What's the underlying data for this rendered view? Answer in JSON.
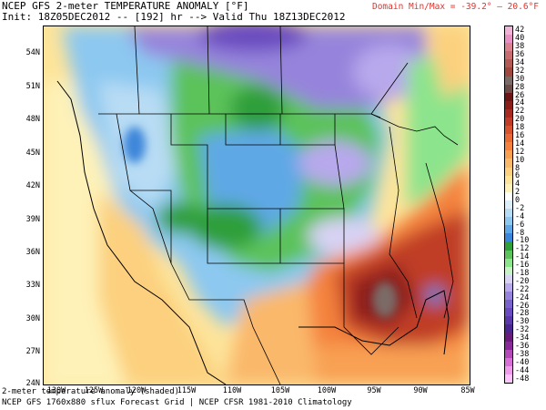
{
  "header": {
    "title": "NCEP GFS 2-meter TEMPERATURE ANOMALY [°F]",
    "init_line": "Init: 18Z05DEC2012 -- [192] hr --> Valid Thu 18Z13DEC2012",
    "domain_minmax": "Domain Min/Max = -39.2° – 20.6°F"
  },
  "map": {
    "lat_labels": [
      "54N",
      "51N",
      "48N",
      "45N",
      "42N",
      "39N",
      "36N",
      "33N",
      "30N",
      "27N",
      "24N"
    ],
    "lon_labels": [
      "125W",
      "120W",
      "115W",
      "110W",
      "105W",
      "100W",
      "95W",
      "90W",
      "85W"
    ],
    "lon_label_first": "130W"
  },
  "footer": {
    "line1": "2-meter temperature anomaly (shaded)",
    "line2": "NCEP GFS 1760x880 sflux Forecast Grid | NCEP CFSR 1981-2010 Climatology"
  },
  "colorbar": {
    "labels": [
      "42",
      "38",
      "34",
      "30",
      "26",
      "22",
      "18",
      "14",
      "10",
      "6",
      "2",
      "-2",
      "-6",
      "-10",
      "-14",
      "-18",
      "-22",
      "-26",
      "-30",
      "-34",
      "-38",
      "-44",
      "-48"
    ],
    "all_labels": [
      "42",
      "40",
      "38",
      "36",
      "34",
      "32",
      "30",
      "28",
      "26",
      "24",
      "22",
      "20",
      "18",
      "16",
      "14",
      "12",
      "10",
      "8",
      "6",
      "4",
      "2",
      "0",
      "-2",
      "-4",
      "-6",
      "-8",
      "-10",
      "-12",
      "-14",
      "-16",
      "-18",
      "-20",
      "-22",
      "-24",
      "-26",
      "-28",
      "-30",
      "-32",
      "-34",
      "-36",
      "-38",
      "-40",
      "-44",
      "-48"
    ],
    "colors": [
      "#f0b4d6",
      "#e891c4",
      "#d88292",
      "#c86e70",
      "#b45a54",
      "#a0473e",
      "#7c6a66",
      "#6c4c48",
      "#6d1414",
      "#8a1e1a",
      "#a82a20",
      "#c03c26",
      "#d5532e",
      "#e86a34",
      "#f4823e",
      "#f8a052",
      "#fab86a",
      "#fcd07e",
      "#fde49a",
      "#fef2b8",
      "#ffffff",
      "#dbeefa",
      "#b8dcf4",
      "#8cc8f0",
      "#5ea8e6",
      "#3c86da",
      "#2f9f3a",
      "#5cc25a",
      "#8ce48c",
      "#c6f2c6",
      "#d8d2f4",
      "#b8a8ec",
      "#9684dc",
      "#7a64cc",
      "#6a4cc0",
      "#5a3aa8",
      "#4a2890",
      "#6a1c7a",
      "#8a2a9a",
      "#b44ab8",
      "#d670d6",
      "#f09aee",
      "#ffc4ff"
    ]
  }
}
